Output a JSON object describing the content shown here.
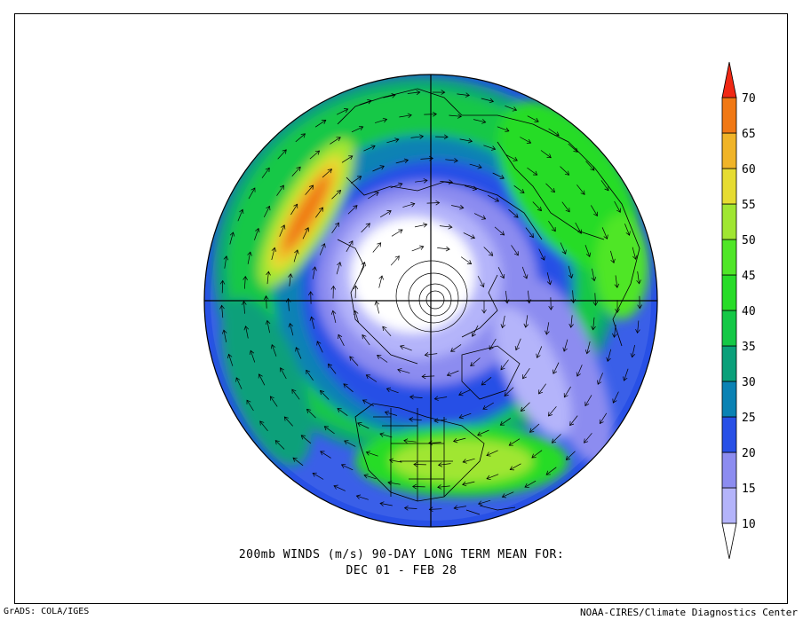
{
  "map": {
    "title_line1": "200mb WINDS (m/s)   90-DAY LONG TERM MEAN FOR:",
    "title_line2": "DEC 01 - FEB 28",
    "projection": "north-polar-stereographic",
    "variable": "200mb wind speed and direction"
  },
  "credits": {
    "left": "GrADS: COLA/IGES",
    "right": "NOAA-CIRES/Climate Diagnostics Center"
  },
  "colorbar": {
    "levels": [
      {
        "label": "10",
        "color": "#b4b4fa"
      },
      {
        "label": "15",
        "color": "#8c8cf0"
      },
      {
        "label": "20",
        "color": "#2850e6"
      },
      {
        "label": "25",
        "color": "#0a82b4"
      },
      {
        "label": "30",
        "color": "#0aa07a"
      },
      {
        "label": "35",
        "color": "#14c846"
      },
      {
        "label": "40",
        "color": "#28dc28"
      },
      {
        "label": "45",
        "color": "#50e628"
      },
      {
        "label": "50",
        "color": "#a0e632"
      },
      {
        "label": "55",
        "color": "#e6dc32"
      },
      {
        "label": "60",
        "color": "#f0b428"
      },
      {
        "label": "65",
        "color": "#f07814"
      },
      {
        "label": "70",
        "color": "#f02814"
      }
    ],
    "below_color": "#ffffff"
  }
}
